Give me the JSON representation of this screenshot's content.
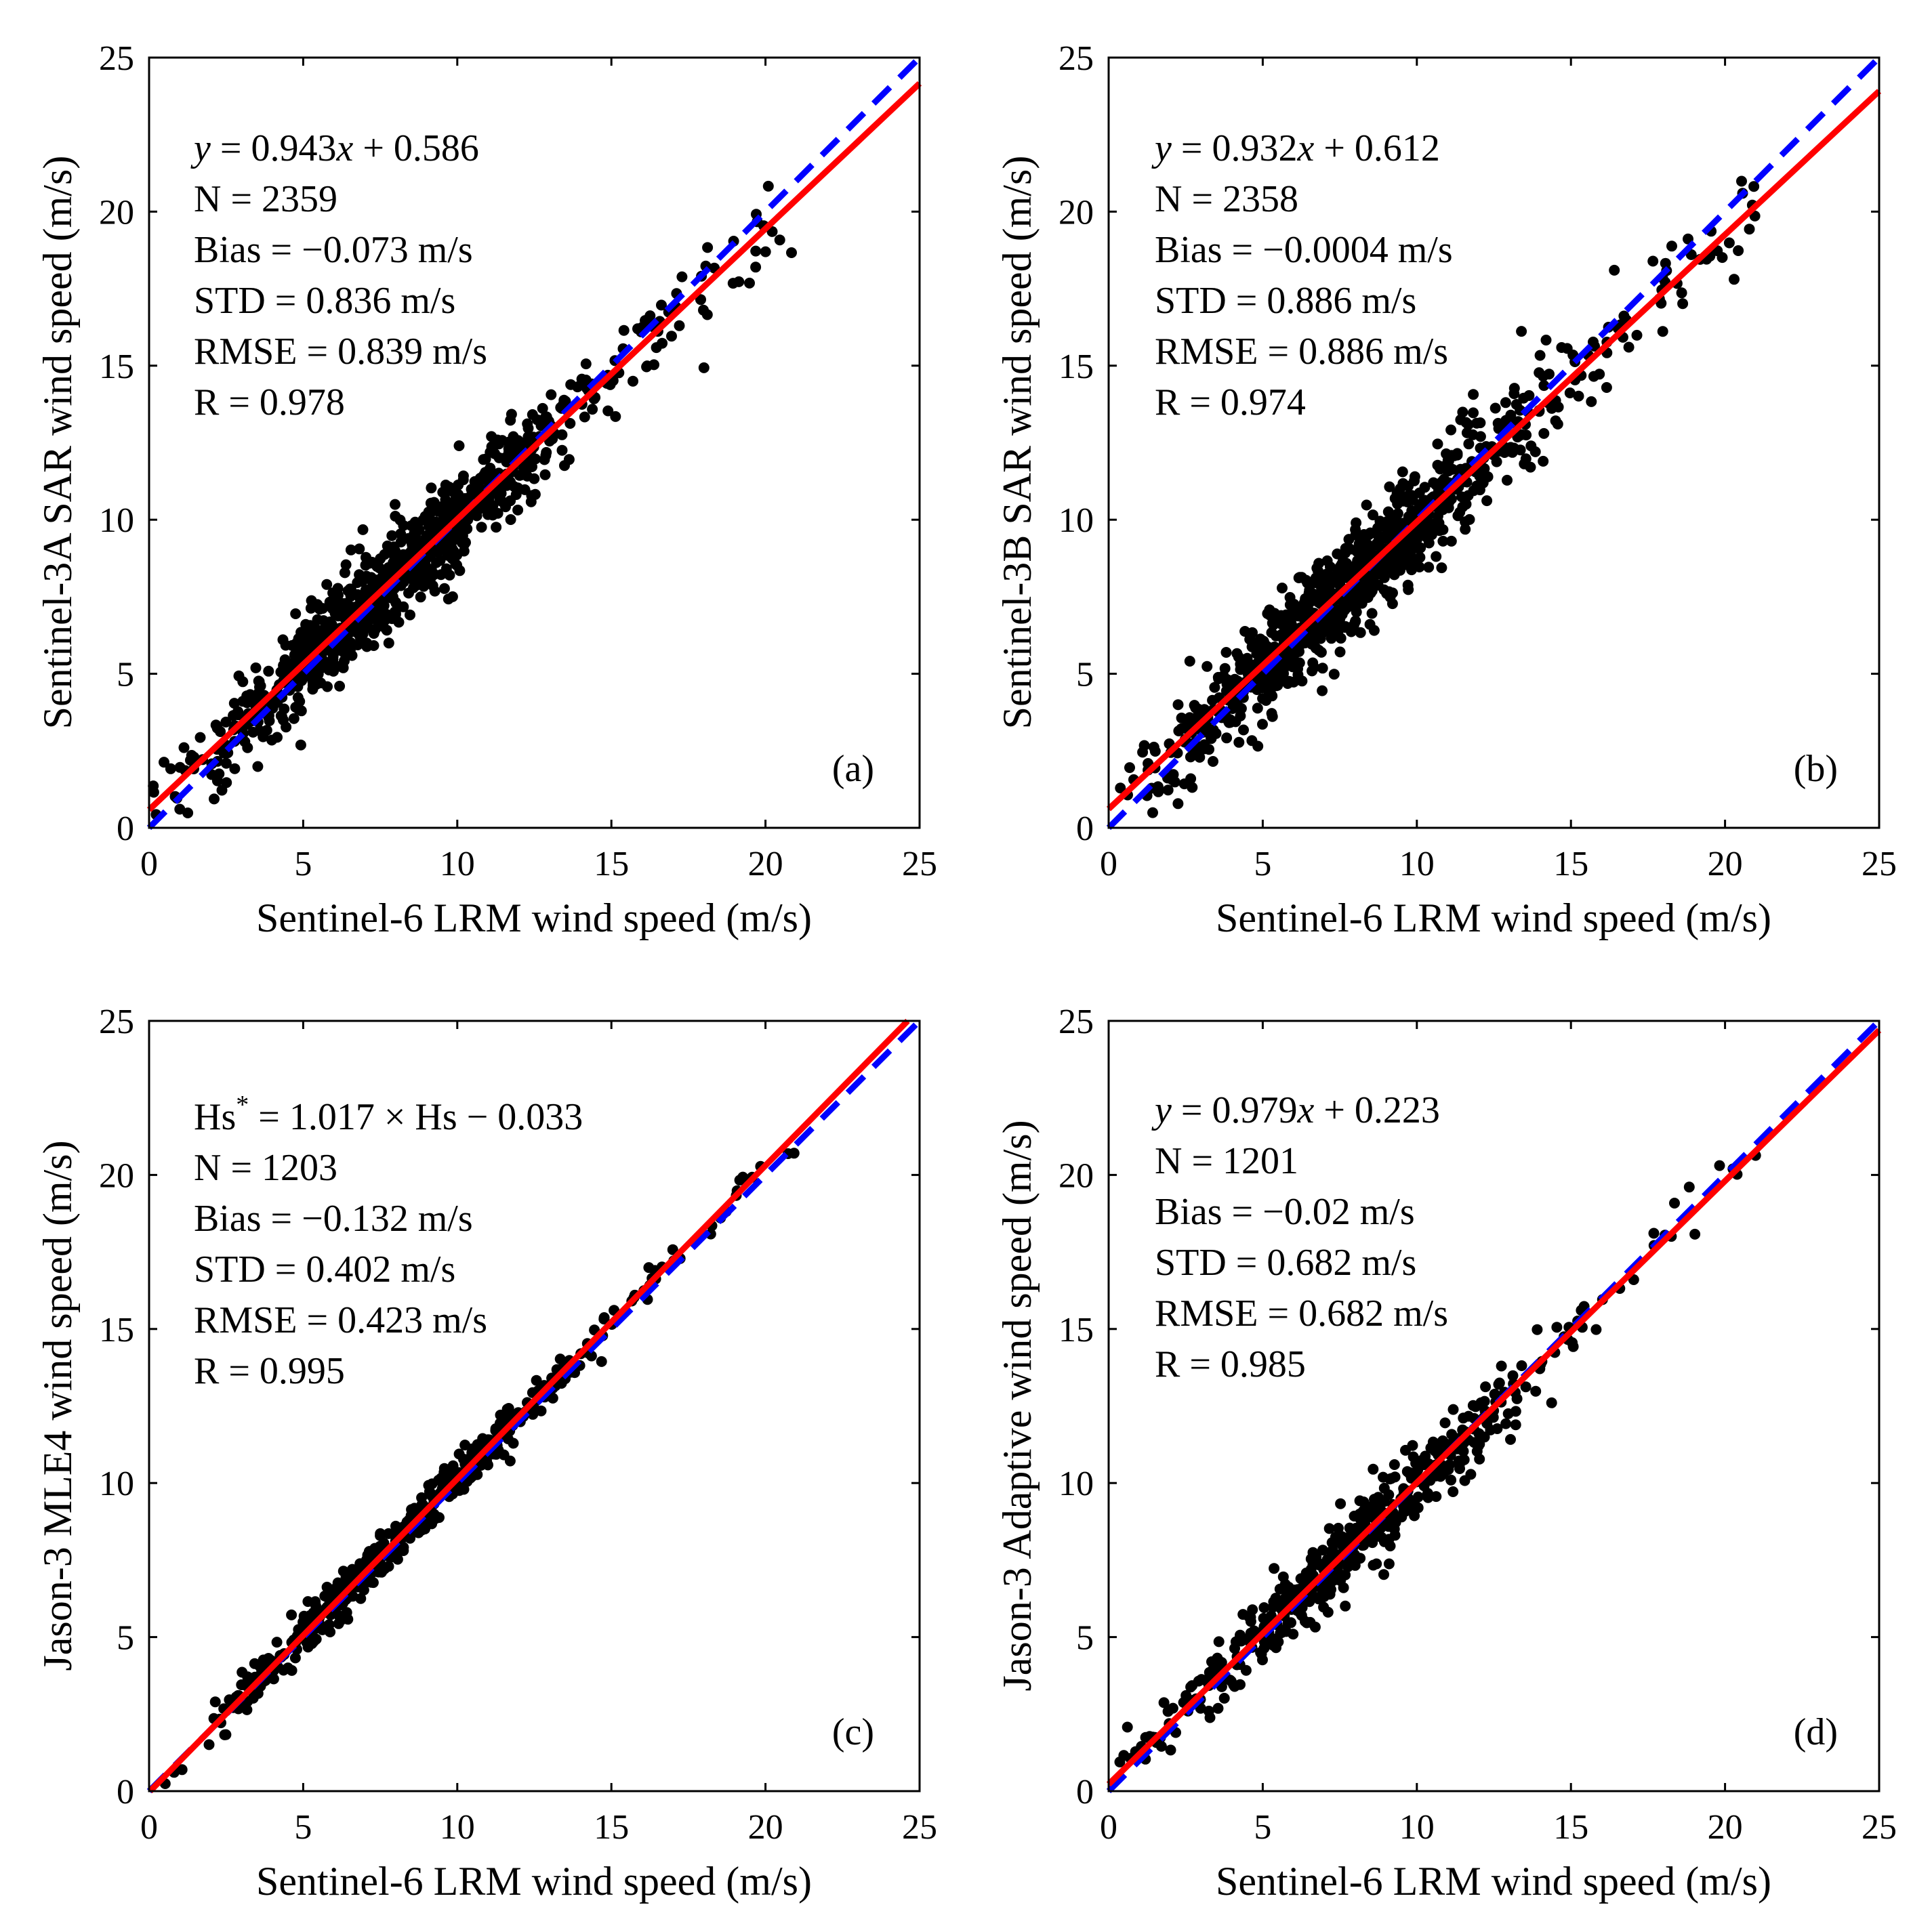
{
  "figure": {
    "colors": {
      "points": "#000000",
      "fit_line": "#ff0000",
      "one_to_one": "#0000ff",
      "frame": "#000000"
    }
  },
  "chart_data": [
    {
      "type": "scatter",
      "panel": "(a)",
      "xlabel": "Sentinel-6 LRM wind speed (m/s)",
      "ylabel": "Sentinel-3A SAR wind speed (m/s)",
      "xlim": [
        0,
        25
      ],
      "ylim": [
        0,
        25
      ],
      "xticks": [
        "0",
        "5",
        "10",
        "15",
        "20",
        "25"
      ],
      "yticks": [
        "0",
        "5",
        "10",
        "15",
        "20",
        "25"
      ],
      "fit": {
        "slope": 0.943,
        "intercept": 0.586
      },
      "scatter_spread": 0.836,
      "stats": {
        "equation_prefix": "y",
        "equation_body": " = 0.943",
        "equation_var": "x",
        "equation_tail": " + 0.586",
        "n": "N = 2359",
        "bias": "Bias = −0.073 m/s",
        "std": "STD = 0.836 m/s",
        "rmse": "RMSE = 0.839 m/s",
        "r": "R = 0.978"
      }
    },
    {
      "type": "scatter",
      "panel": "(b)",
      "xlabel": "Sentinel-6 LRM wind speed (m/s)",
      "ylabel": "Sentinel-3B SAR wind speed (m/s)",
      "xlim": [
        0,
        25
      ],
      "ylim": [
        0,
        25
      ],
      "xticks": [
        "0",
        "5",
        "10",
        "15",
        "20",
        "25"
      ],
      "yticks": [
        "0",
        "5",
        "10",
        "15",
        "20",
        "25"
      ],
      "fit": {
        "slope": 0.932,
        "intercept": 0.612
      },
      "scatter_spread": 0.886,
      "stats": {
        "equation_prefix": "y",
        "equation_body": " = 0.932",
        "equation_var": "x",
        "equation_tail": " + 0.612",
        "n": "N = 2358",
        "bias": "Bias = −0.0004 m/s",
        "std": "STD = 0.886 m/s",
        "rmse": "RMSE = 0.886 m/s",
        "r": "R = 0.974"
      }
    },
    {
      "type": "scatter",
      "panel": "(c)",
      "xlabel": "Sentinel-6 LRM wind speed (m/s)",
      "ylabel": "Jason-3 MLE4 wind speed (m/s)",
      "xlim": [
        0,
        25
      ],
      "ylim": [
        0,
        25
      ],
      "xticks": [
        "0",
        "5",
        "10",
        "15",
        "20",
        "25"
      ],
      "yticks": [
        "0",
        "5",
        "10",
        "15",
        "20",
        "25"
      ],
      "fit": {
        "slope": 1.017,
        "intercept": -0.033
      },
      "scatter_spread": 0.402,
      "stats": {
        "equation_hs": "Hs",
        "equation_star": "*",
        "equation_rest": " = 1.017 × Hs − 0.033",
        "n": "N = 1203",
        "bias": "Bias = −0.132 m/s",
        "std": "STD = 0.402 m/s",
        "rmse": "RMSE = 0.423 m/s",
        "r": "R = 0.995"
      }
    },
    {
      "type": "scatter",
      "panel": "(d)",
      "xlabel": "Sentinel-6 LRM wind speed (m/s)",
      "ylabel": "Jason-3 Adaptive wind speed (m/s)",
      "xlim": [
        0,
        25
      ],
      "ylim": [
        0,
        25
      ],
      "xticks": [
        "0",
        "5",
        "10",
        "15",
        "20",
        "25"
      ],
      "yticks": [
        "0",
        "5",
        "10",
        "15",
        "20",
        "25"
      ],
      "fit": {
        "slope": 0.979,
        "intercept": 0.223
      },
      "scatter_spread": 0.682,
      "stats": {
        "equation_prefix": "y",
        "equation_body": " = 0.979",
        "equation_var": "x",
        "equation_tail": " + 0.223",
        "n": "N = 1201",
        "bias": "Bias = −0.02 m/s",
        "std": "STD = 0.682 m/s",
        "rmse": "RMSE = 0.682 m/s",
        "r": "R = 0.985"
      }
    }
  ]
}
